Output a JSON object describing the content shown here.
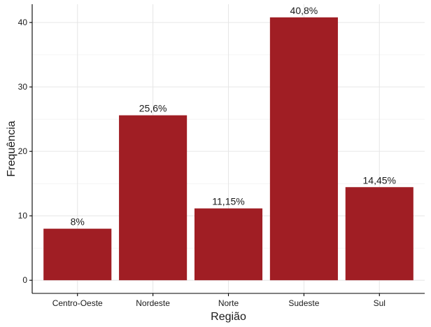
{
  "chart_data": {
    "type": "bar",
    "categories": [
      "Centro-Oeste",
      "Nordeste",
      "Norte",
      "Sudeste",
      "Sul"
    ],
    "values": [
      8,
      25.6,
      11.15,
      40.8,
      14.45
    ],
    "data_labels": [
      "8%",
      "25,6%",
      "11,15%",
      "40,8%",
      "14,45%"
    ],
    "xlabel": "Região",
    "ylabel": "Frequência",
    "ylim": [
      -2.04,
      42.84
    ],
    "yticks": [
      0,
      10,
      20,
      30,
      40
    ],
    "bar_color": "#a01e24",
    "grid": true
  }
}
